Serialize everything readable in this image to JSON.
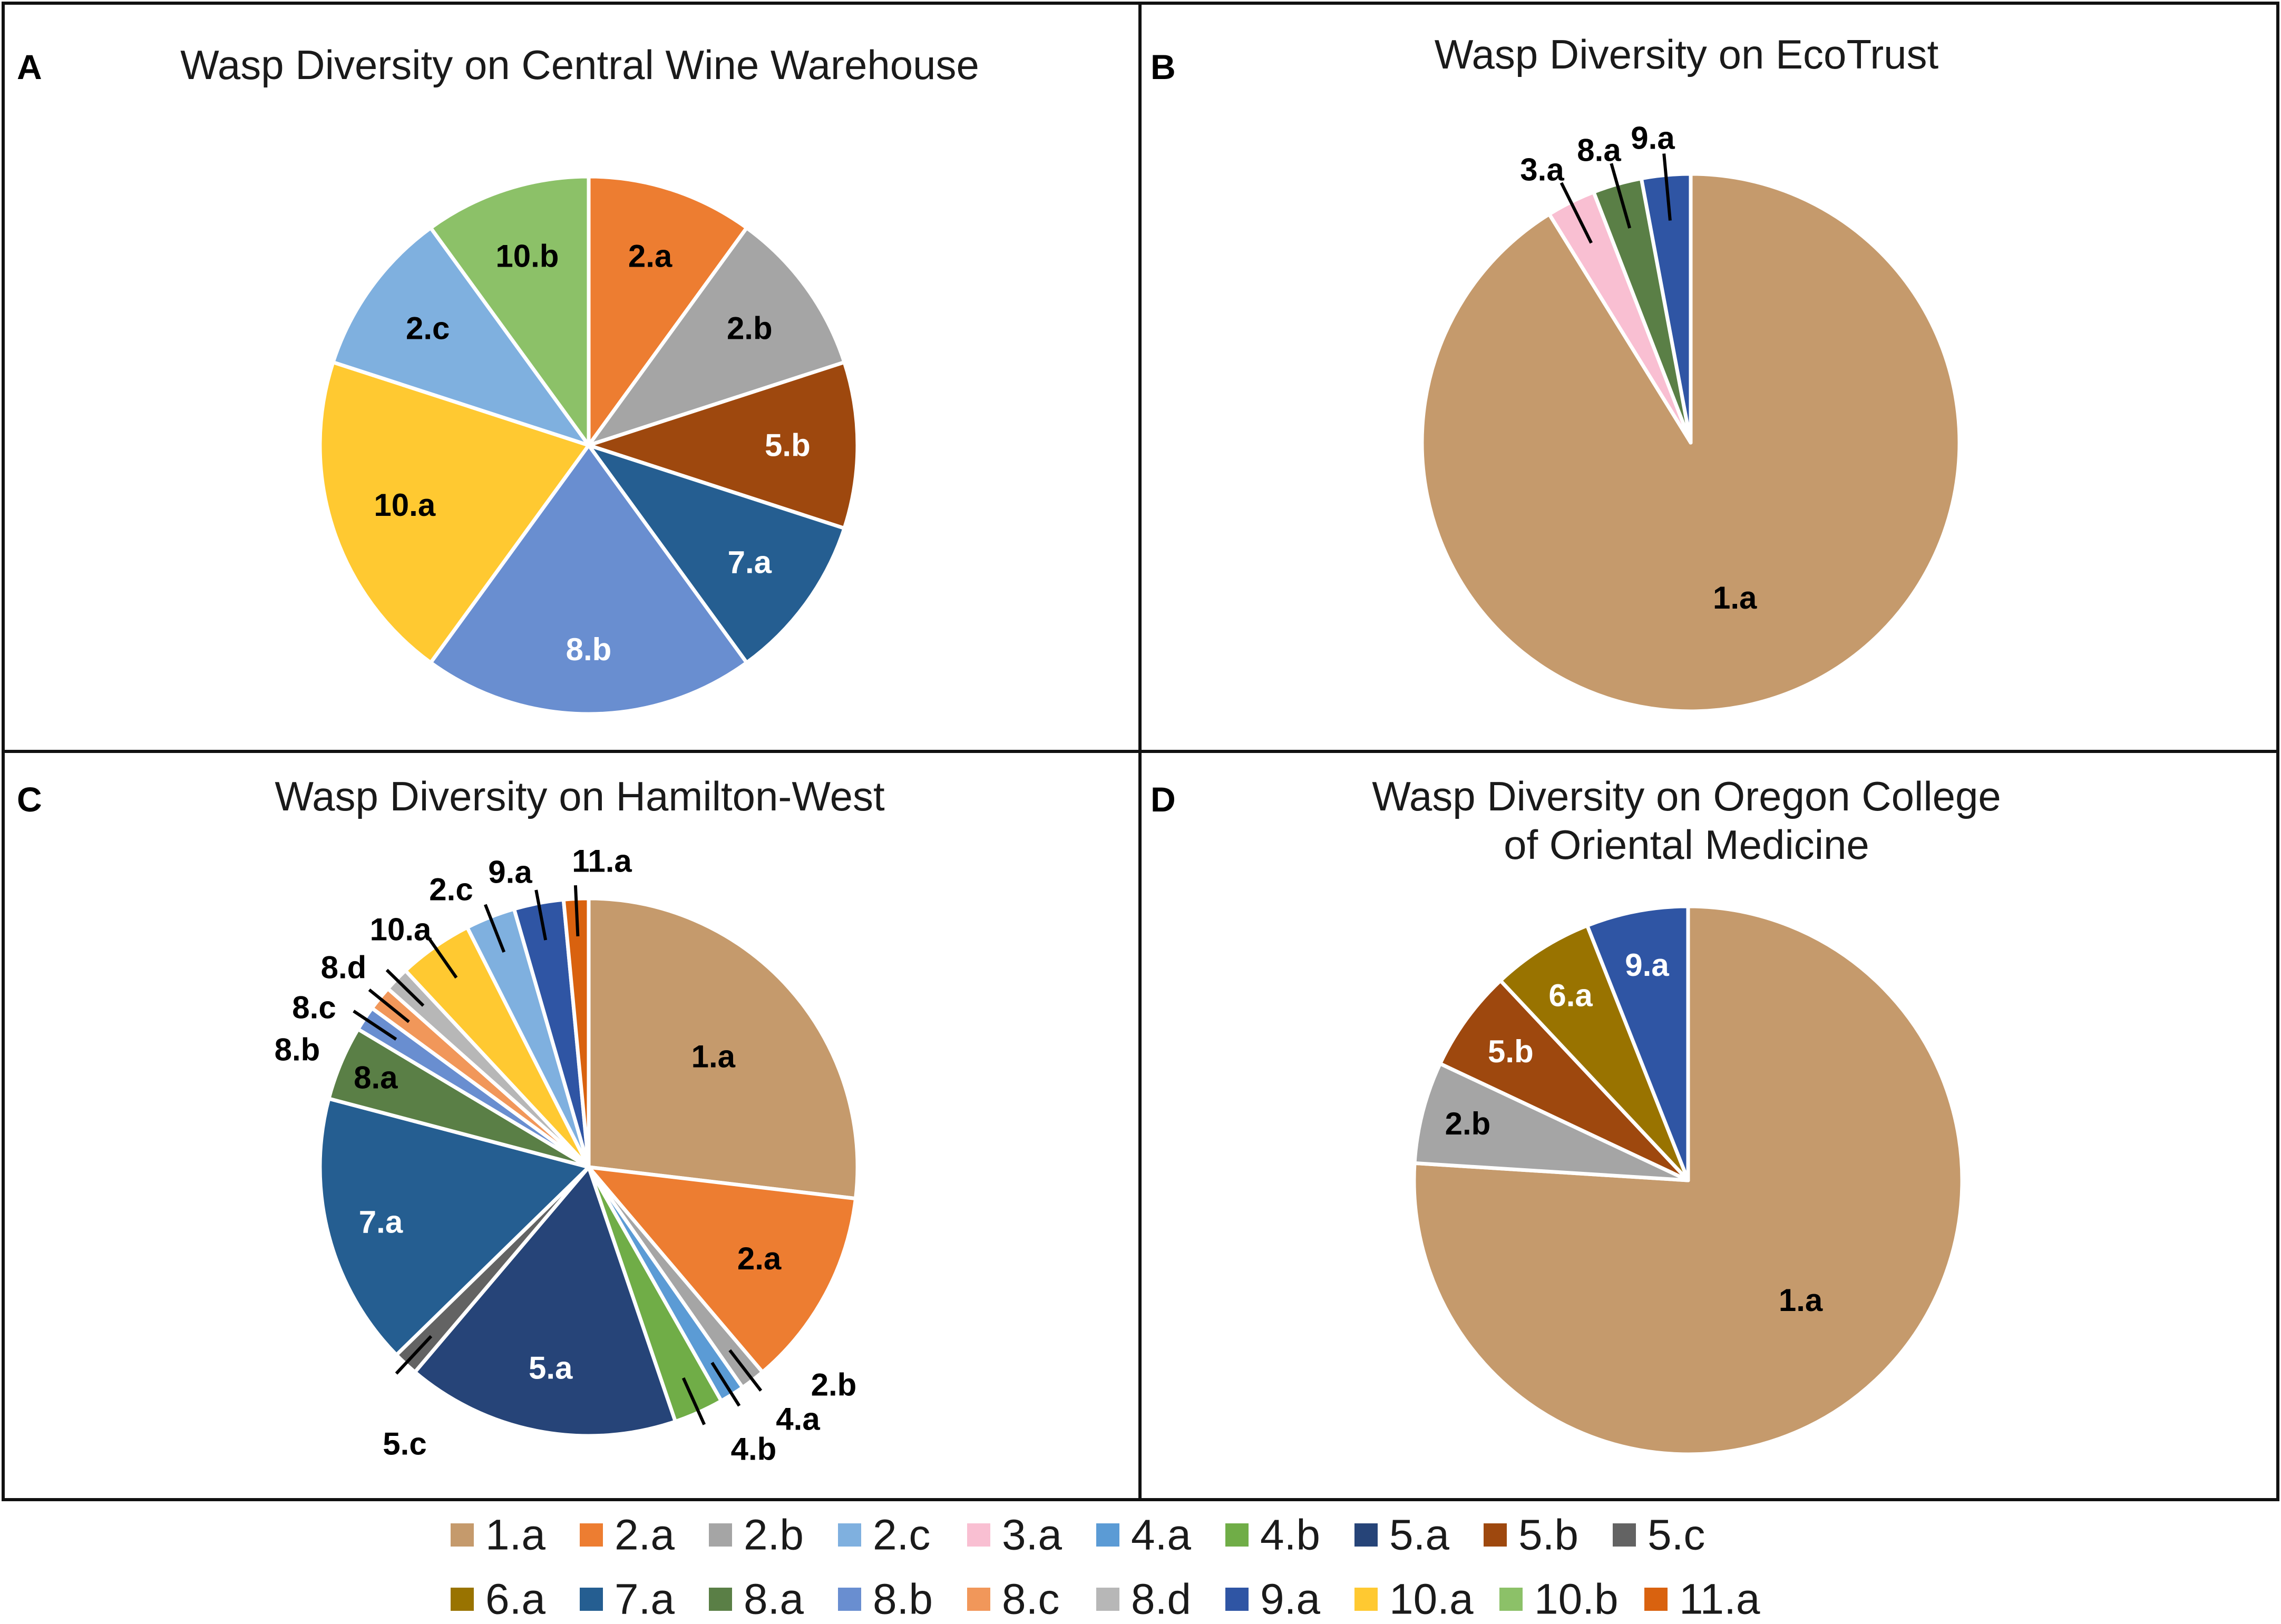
{
  "colors": {
    "1.a": "#C59A6C",
    "2.a": "#ED7D31",
    "2.b": "#A5A5A5",
    "2.c": "#7FB0DF",
    "3.a": "#F9BFD2",
    "4.a": "#5B9BD5",
    "4.b": "#70AD47",
    "5.a": "#264478",
    "5.b": "#9E480E",
    "5.c": "#636363",
    "6.a": "#997300",
    "7.a": "#255E91",
    "8.a": "#5A7F46",
    "8.b": "#698ED0",
    "8.c": "#F1975A",
    "8.d": "#B7B7B7",
    "9.a": "#2F55A4",
    "10.a": "#FFC931",
    "10.b": "#8CC168",
    "11.a": "#D9620F"
  },
  "chart_data": [
    {
      "type": "pie",
      "panel": "A",
      "title": [
        "Wasp Diversity on Central Wine Warehouse"
      ],
      "slices": [
        {
          "label": "2.a",
          "value": 1
        },
        {
          "label": "2.b",
          "value": 1
        },
        {
          "label": "5.b",
          "value": 1
        },
        {
          "label": "7.a",
          "value": 1
        },
        {
          "label": "8.b",
          "value": 2
        },
        {
          "label": "10.a",
          "value": 2
        },
        {
          "label": "2.c",
          "value": 1
        },
        {
          "label": "10.b",
          "value": 1
        }
      ]
    },
    {
      "type": "pie",
      "panel": "B",
      "title": [
        "Wasp Diversity on EcoTrust"
      ],
      "slices": [
        {
          "label": "1.a",
          "value": 31
        },
        {
          "label": "3.a",
          "value": 1
        },
        {
          "label": "8.a",
          "value": 1
        },
        {
          "label": "9.a",
          "value": 1
        }
      ]
    },
    {
      "type": "pie",
      "panel": "C",
      "title": [
        "Wasp Diversity on Hamilton-West"
      ],
      "slices": [
        {
          "label": "1.a",
          "value": 18
        },
        {
          "label": "2.a",
          "value": 8
        },
        {
          "label": "2.b",
          "value": 1
        },
        {
          "label": "4.a",
          "value": 1
        },
        {
          "label": "4.b",
          "value": 2
        },
        {
          "label": "5.a",
          "value": 11
        },
        {
          "label": "5.c",
          "value": 1
        },
        {
          "label": "7.a",
          "value": 11
        },
        {
          "label": "8.a",
          "value": 3
        },
        {
          "label": "8.b",
          "value": 1
        },
        {
          "label": "8.c",
          "value": 1
        },
        {
          "label": "8.d",
          "value": 1
        },
        {
          "label": "10.a",
          "value": 3
        },
        {
          "label": "2.c",
          "value": 2
        },
        {
          "label": "9.a",
          "value": 2
        },
        {
          "label": "11.a",
          "value": 1
        }
      ]
    },
    {
      "type": "pie",
      "panel": "D",
      "title": [
        "Wasp Diversity on Oregon College",
        "of Oriental Medicine"
      ],
      "slices": [
        {
          "label": "1.a",
          "value": 38
        },
        {
          "label": "2.b",
          "value": 3
        },
        {
          "label": "5.b",
          "value": 3
        },
        {
          "label": "6.a",
          "value": 3
        },
        {
          "label": "9.a",
          "value": 3
        }
      ]
    }
  ],
  "legend": {
    "rows": [
      [
        "1.a",
        "2.a",
        "2.b",
        "2.c",
        "3.a",
        "4.a",
        "4.b",
        "5.a",
        "5.b",
        "5.c"
      ],
      [
        "6.a",
        "7.a",
        "8.a",
        "8.b",
        "8.c",
        "8.d",
        "9.a",
        "10.a",
        "10.b",
        "11.a"
      ]
    ]
  }
}
